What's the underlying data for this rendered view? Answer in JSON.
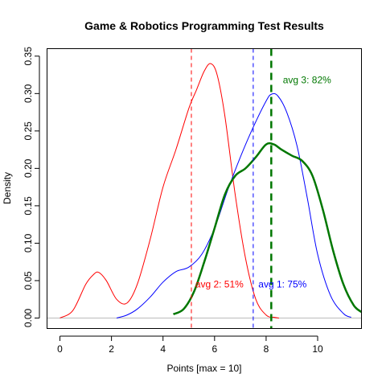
{
  "chart_data": {
    "type": "line",
    "title": "Game & Robotics Programming Test Results",
    "xlabel": "Points [max = 10]",
    "ylabel": "Density",
    "xlim": [
      -0.5,
      11.7
    ],
    "ylim": [
      -0.014,
      0.36
    ],
    "xticks": [
      0,
      2,
      4,
      6,
      8,
      10
    ],
    "yticks": [
      0.0,
      0.05,
      0.1,
      0.15,
      0.2,
      0.25,
      0.3,
      0.35
    ],
    "ytick_labels": [
      "0.00",
      "0.05",
      "0.10",
      "0.15",
      "0.20",
      "0.25",
      "0.30",
      "0.35"
    ],
    "grid": false,
    "legend": "none",
    "baseline": {
      "y": 0,
      "color": "#bbbbbb"
    },
    "series": [
      {
        "color": "#ff0000",
        "stroke_width": 1,
        "x": [
          0,
          0.5,
          1.0,
          1.3,
          1.5,
          1.8,
          2.2,
          2.6,
          3.0,
          3.5,
          4.0,
          4.5,
          5.0,
          5.3,
          5.6,
          5.85,
          6.1,
          6.4,
          6.8,
          7.2,
          7.6,
          8.0,
          8.3,
          8.5
        ],
        "y": [
          0.0,
          0.01,
          0.045,
          0.058,
          0.061,
          0.05,
          0.025,
          0.02,
          0.045,
          0.105,
          0.175,
          0.225,
          0.28,
          0.305,
          0.33,
          0.34,
          0.325,
          0.27,
          0.165,
          0.08,
          0.025,
          0.004,
          0.001,
          0.0
        ]
      },
      {
        "color": "#0000ff",
        "stroke_width": 1,
        "x": [
          2.2,
          2.6,
          3.0,
          3.5,
          4.0,
          4.5,
          5.0,
          5.5,
          6.0,
          6.5,
          7.0,
          7.5,
          8.0,
          8.2,
          8.45,
          8.8,
          9.2,
          9.6,
          10.0,
          10.5,
          11.0,
          11.3
        ],
        "y": [
          0.0,
          0.004,
          0.012,
          0.028,
          0.048,
          0.062,
          0.068,
          0.085,
          0.12,
          0.17,
          0.215,
          0.255,
          0.29,
          0.299,
          0.297,
          0.275,
          0.23,
          0.16,
          0.085,
          0.03,
          0.006,
          0.001
        ]
      },
      {
        "color": "#007700",
        "stroke_width": 2.5,
        "x": [
          4.4,
          4.8,
          5.2,
          5.6,
          6.0,
          6.4,
          6.8,
          7.2,
          7.6,
          8.0,
          8.3,
          8.6,
          9.0,
          9.4,
          9.8,
          10.2,
          10.6,
          11.0,
          11.4,
          11.7
        ],
        "y": [
          0.005,
          0.012,
          0.035,
          0.075,
          0.12,
          0.165,
          0.19,
          0.2,
          0.215,
          0.232,
          0.232,
          0.225,
          0.217,
          0.21,
          0.19,
          0.145,
          0.09,
          0.045,
          0.017,
          0.008
        ]
      }
    ],
    "vlines": [
      {
        "x": 5.1,
        "color": "#ff0000",
        "dashed": true,
        "width": 1
      },
      {
        "x": 7.5,
        "color": "#0000ff",
        "dashed": true,
        "width": 1
      },
      {
        "x": 8.2,
        "color": "#007700",
        "dashed": true,
        "width": 2.5
      }
    ],
    "annotations": [
      {
        "text": "avg 2:  51%",
        "x": 5.25,
        "y": 0.045,
        "color": "#ff0000"
      },
      {
        "text": "avg 1:  75%",
        "x": 7.7,
        "y": 0.045,
        "color": "#0000ff"
      },
      {
        "text": "avg 3:  82%",
        "x": 8.65,
        "y": 0.318,
        "color": "#007700"
      }
    ]
  }
}
